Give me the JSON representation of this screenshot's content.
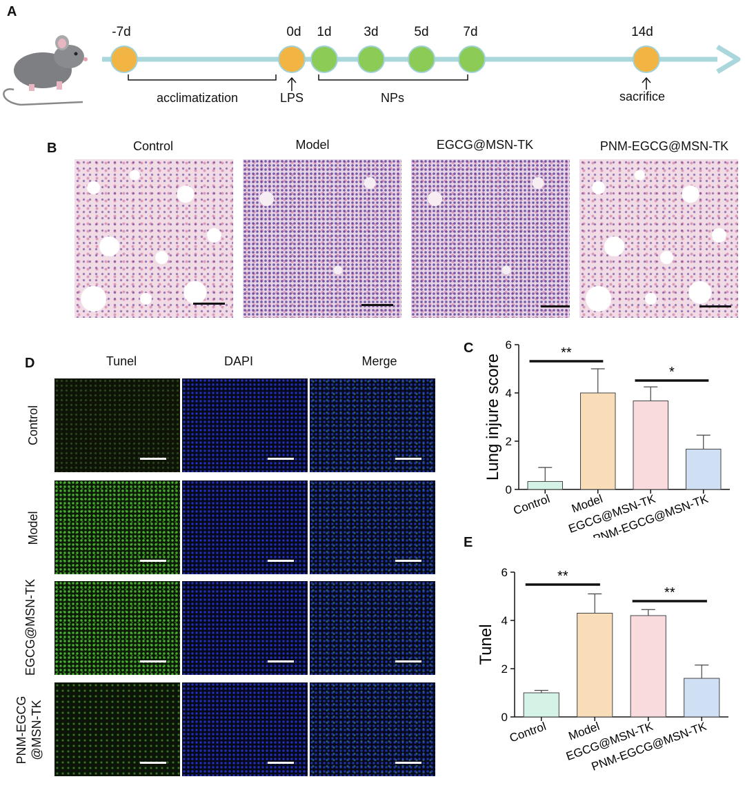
{
  "panels": {
    "A": "A",
    "B": "B",
    "C": "C",
    "D": "D",
    "E": "E"
  },
  "timeline": {
    "days": [
      "-7d",
      "0d",
      "1d",
      "3d",
      "5d",
      "7d",
      "14d"
    ],
    "acclimatization": "acclimatization",
    "lps": "LPS",
    "nps": "NPs",
    "sacrifice": "sacrifice",
    "colors": {
      "orange": "#f2b544",
      "green": "#8bcb56",
      "axis": "#a9d7dc"
    }
  },
  "histology": {
    "titles": [
      "Control",
      "Model",
      "EGCG@MSN-TK",
      "PNM-EGCG@MSN-TK"
    ]
  },
  "fluorescence": {
    "columns": [
      "Tunel",
      "DAPI",
      "Merge"
    ],
    "rows": [
      "Control",
      "Model",
      "EGCG@MSN-TK",
      "PNM-EGCG@MSN-TK"
    ],
    "row_lines": [
      [
        "Control"
      ],
      [
        "Model"
      ],
      [
        "EGCG@MSN-TK"
      ],
      [
        "PNM-EGCG",
        "@MSN-TK"
      ]
    ]
  },
  "chart_data": [
    {
      "type": "bar",
      "panel": "C",
      "categories": [
        "Control",
        "Model",
        "EGCG@MSN-TK",
        "PNM-EGCG@MSN-TK"
      ],
      "values": [
        0.33,
        4.0,
        3.67,
        1.67
      ],
      "errors": [
        0.58,
        1.0,
        0.58,
        0.58
      ],
      "ylabel": "Lung injure score",
      "ylim": [
        0,
        6
      ],
      "yticks": [
        0,
        2,
        4,
        6
      ],
      "colors": [
        "#d4f3e6",
        "#f9ddb8",
        "#f9dadd",
        "#cfe0f4"
      ],
      "significance": [
        {
          "label": "**",
          "from": 0,
          "to": 1
        },
        {
          "label": "*",
          "from": 2,
          "to": 3
        }
      ]
    },
    {
      "type": "bar",
      "panel": "E",
      "categories": [
        "Control",
        "Model",
        "EGCG@MSN-TK",
        "PNM-EGCG@MSN-TK"
      ],
      "values": [
        1.0,
        4.3,
        4.2,
        1.6
      ],
      "errors": [
        0.1,
        0.8,
        0.25,
        0.55
      ],
      "ylabel": "Tunel",
      "ylim": [
        0,
        6
      ],
      "yticks": [
        0,
        2,
        4,
        6
      ],
      "colors": [
        "#d4f3e6",
        "#f9ddb8",
        "#f9dadd",
        "#cfe0f4"
      ],
      "significance": [
        {
          "label": "**",
          "from": 0,
          "to": 1
        },
        {
          "label": "**",
          "from": 2,
          "to": 3
        }
      ]
    }
  ]
}
